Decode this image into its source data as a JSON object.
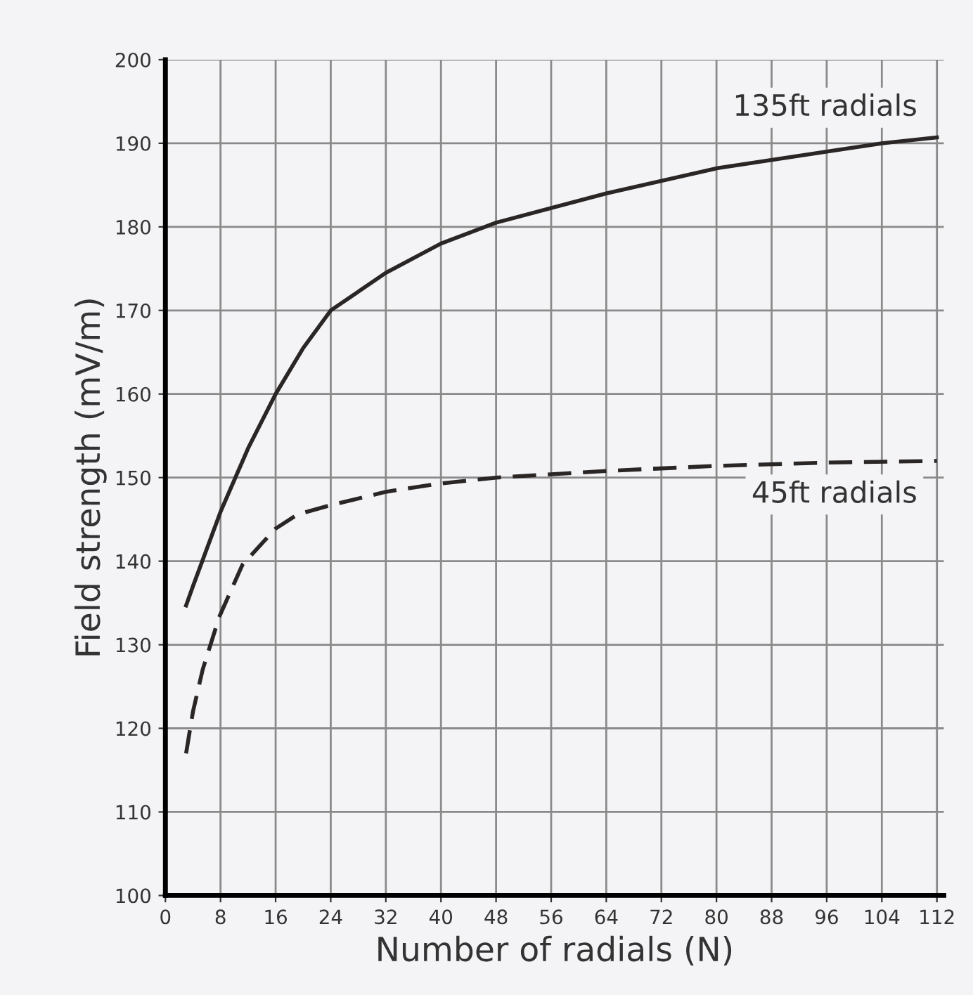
{
  "chart_data": {
    "type": "line",
    "xlabel": "Number of radials (N)",
    "ylabel": "Field strength (mV/m)",
    "xlim": [
      0,
      113
    ],
    "ylim": [
      100,
      200
    ],
    "xticks": [
      0,
      8,
      16,
      24,
      32,
      40,
      48,
      56,
      64,
      72,
      80,
      88,
      96,
      104,
      112
    ],
    "yticks": [
      100,
      110,
      120,
      130,
      140,
      150,
      160,
      170,
      180,
      190,
      200
    ],
    "grid": true,
    "marker": "none",
    "series": [
      {
        "name": "135ft radials",
        "color": "#2b2626",
        "line_style": "solid",
        "x": [
          3,
          4,
          8,
          12,
          16,
          20,
          24,
          32,
          40,
          48,
          64,
          80,
          96,
          104,
          112
        ],
        "values": [
          134.7,
          137,
          145.9,
          153.5,
          160,
          165.5,
          170,
          174.5,
          178,
          180.5,
          184,
          187,
          189,
          190,
          190.7
        ]
      },
      {
        "name": "45ft radials",
        "color": "#2b2626",
        "line_style": "dashed",
        "x": [
          3,
          4,
          5.4,
          7.8,
          11.2,
          16,
          19.2,
          24,
          32,
          40,
          48,
          64,
          80,
          96,
          112
        ],
        "values": [
          117,
          122,
          127,
          133.3,
          139.6,
          143.9,
          145.6,
          146.7,
          148.3,
          149.3,
          150,
          150.8,
          151.4,
          151.8,
          152
        ]
      }
    ]
  }
}
